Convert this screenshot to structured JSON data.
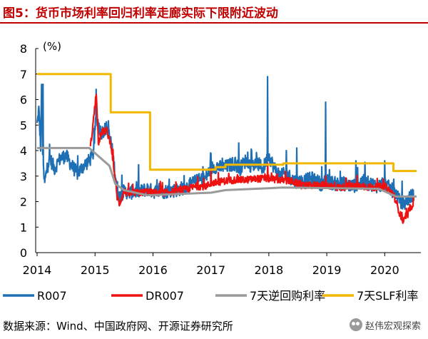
{
  "figure": {
    "title": "图5：货币市场利率回归利率走廊实际下限附近波动",
    "source": "数据来源：Wind、中国政府网、开源证券研究所",
    "watermark": "赵伟宏观探索"
  },
  "chart_data": {
    "type": "line",
    "title": "图5：货币市场利率回归利率走廊实际下限附近波动",
    "ylabel": "(%)",
    "xlabel": "",
    "xlim": [
      2014.0,
      2020.55
    ],
    "ylim": [
      0,
      8
    ],
    "yticks": [
      0,
      1,
      2,
      3,
      4,
      5,
      6,
      7,
      8
    ],
    "xticks": [
      "2014",
      "2015",
      "2016",
      "2017",
      "2018",
      "2019",
      "2020"
    ],
    "grid": false,
    "legend_position": "bottom",
    "series": [
      {
        "name": "R007",
        "color": "#1f6fb4",
        "style": "noisy",
        "x": [
          2014.0,
          2014.03,
          2014.06,
          2014.08,
          2014.1,
          2014.13,
          2014.17,
          2014.22,
          2014.3,
          2014.4,
          2014.5,
          2014.6,
          2014.7,
          2014.8,
          2014.9,
          2014.97,
          2015.02,
          2015.1,
          2015.2,
          2015.28,
          2015.33,
          2015.38,
          2015.42,
          2015.5,
          2015.6,
          2015.7,
          2015.8,
          2015.9,
          2016.0,
          2016.2,
          2016.4,
          2016.6,
          2016.75,
          2016.9,
          2017.0,
          2017.1,
          2017.2,
          2017.3,
          2017.4,
          2017.5,
          2017.6,
          2017.7,
          2017.8,
          2017.9,
          2018.0,
          2018.1,
          2018.2,
          2018.3,
          2018.45,
          2018.6,
          2018.75,
          2018.9,
          2019.0,
          2019.15,
          2019.3,
          2019.45,
          2019.6,
          2019.75,
          2019.9,
          2020.0,
          2020.1,
          2020.2,
          2020.3,
          2020.4,
          2020.5
        ],
        "y": [
          5.0,
          5.6,
          4.2,
          6.6,
          3.4,
          2.7,
          3.3,
          3.7,
          3.3,
          3.7,
          3.8,
          3.4,
          3.1,
          3.4,
          3.6,
          3.9,
          5.4,
          4.7,
          4.9,
          4.3,
          3.4,
          2.6,
          2.2,
          2.4,
          2.35,
          2.4,
          2.4,
          2.5,
          2.4,
          2.4,
          2.45,
          2.6,
          2.8,
          2.9,
          3.3,
          3.4,
          3.3,
          3.4,
          3.5,
          3.3,
          3.6,
          3.4,
          3.5,
          3.3,
          3.8,
          3.3,
          3.0,
          3.1,
          2.8,
          2.8,
          2.9,
          2.7,
          2.8,
          2.7,
          2.7,
          2.6,
          2.8,
          2.7,
          2.6,
          2.7,
          2.5,
          2.3,
          1.8,
          2.1,
          2.3
        ],
        "spikes": [
          {
            "x": 2014.1,
            "y": 6.6
          },
          {
            "x": 2015.02,
            "y": 6.4
          },
          {
            "x": 2017.0,
            "y": 3.9
          },
          {
            "x": 2017.2,
            "y": 3.7
          },
          {
            "x": 2017.48,
            "y": 4.3
          },
          {
            "x": 2017.98,
            "y": 6.9
          },
          {
            "x": 2018.3,
            "y": 4.0
          },
          {
            "x": 2018.48,
            "y": 4.1
          },
          {
            "x": 2018.98,
            "y": 5.9
          },
          {
            "x": 2019.5,
            "y": 3.6
          },
          {
            "x": 2020.0,
            "y": 3.6
          },
          {
            "x": 2020.3,
            "y": 2.8
          }
        ]
      },
      {
        "name": "DR007",
        "color": "#ee1111",
        "style": "noisy",
        "x": [
          2014.92,
          2015.02,
          2015.06,
          2015.1,
          2015.2,
          2015.28,
          2015.33,
          2015.38,
          2015.42,
          2015.5,
          2015.6,
          2015.7,
          2015.8,
          2015.9,
          2016.0,
          2016.2,
          2016.4,
          2016.6,
          2016.75,
          2016.9,
          2017.0,
          2017.2,
          2017.4,
          2017.6,
          2017.8,
          2018.0,
          2018.2,
          2018.4,
          2018.6,
          2018.8,
          2019.0,
          2019.2,
          2019.4,
          2019.6,
          2019.8,
          2020.0,
          2020.15,
          2020.25,
          2020.32,
          2020.4,
          2020.5
        ],
        "y": [
          4.1,
          6.2,
          4.3,
          4.7,
          4.8,
          4.2,
          3.2,
          2.2,
          1.9,
          2.4,
          2.3,
          2.35,
          2.35,
          2.4,
          2.35,
          2.35,
          2.4,
          2.5,
          2.6,
          2.6,
          2.7,
          2.8,
          2.85,
          2.85,
          2.9,
          2.9,
          2.85,
          2.8,
          2.6,
          2.65,
          2.65,
          2.55,
          2.6,
          2.6,
          2.55,
          2.6,
          2.3,
          1.6,
          1.2,
          1.5,
          2.0
        ],
        "spikes": [
          {
            "x": 2015.02,
            "y": 6.2
          },
          {
            "x": 2017.0,
            "y": 3.3
          },
          {
            "x": 2017.98,
            "y": 3.5
          },
          {
            "x": 2018.98,
            "y": 3.0
          }
        ]
      },
      {
        "name": "7天逆回购利率",
        "color": "#9a9a9a",
        "style": "step",
        "x": [
          2014.0,
          2014.9,
          2015.25,
          2015.35,
          2015.5,
          2015.9,
          2017.0,
          2017.25,
          2018.25,
          2019.9,
          2020.2,
          2020.55
        ],
        "y": [
          4.1,
          4.1,
          3.4,
          2.7,
          2.45,
          2.25,
          2.35,
          2.45,
          2.55,
          2.5,
          2.2,
          2.2
        ]
      },
      {
        "name": "7天SLF利率",
        "color": "#f2b800",
        "style": "step",
        "x": [
          2014.0,
          2015.27,
          2015.27,
          2015.95,
          2015.95,
          2017.08,
          2017.08,
          2017.25,
          2017.25,
          2018.25,
          2018.25,
          2020.15,
          2020.15,
          2020.55
        ],
        "y": [
          7.0,
          7.0,
          5.5,
          5.5,
          3.25,
          3.25,
          3.35,
          3.35,
          3.45,
          3.45,
          3.5,
          3.5,
          3.2,
          3.2
        ]
      }
    ]
  }
}
